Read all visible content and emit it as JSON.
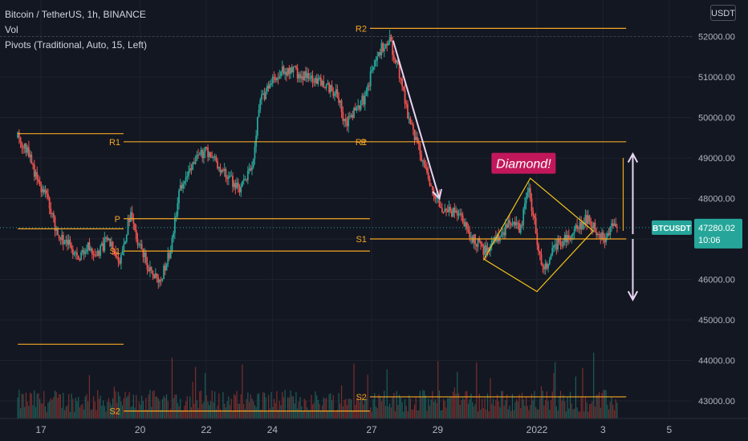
{
  "symbol_title": "Bitcoin / TetherUS, 1h, BINANCE",
  "vol_label": "Vol",
  "pivots_label": "Pivots (Traditional, Auto, 15, Left)",
  "currency": "USDT",
  "price_label": {
    "symbol": "BTCUSDT",
    "price": "47280.02",
    "countdown": "10:06",
    "color": "#26a69a"
  },
  "annotation": {
    "text": "Diamond!",
    "bg": "#c2185b"
  },
  "colors": {
    "up": "#26a69a",
    "down": "#ef5350",
    "pivot": "#f5a623",
    "diamond": "#f5c518",
    "arrow": "#e8d5f0",
    "bg": "#131722",
    "grid": "#1e222d"
  },
  "pivot_labels": [
    "R2",
    "R1",
    "P",
    "S1",
    "S2"
  ],
  "chart_data": {
    "type": "candlestick",
    "title": "Bitcoin / TetherUS, 1h, BINANCE",
    "y_ticks": [
      52000,
      51000,
      50000,
      49000,
      48000,
      47000,
      46000,
      45000,
      44000,
      43000
    ],
    "y_tick_labels": [
      "52000.00",
      "51000.00",
      "50000.00",
      "49000.00",
      "48000.00",
      "47000.00",
      "46000.00",
      "45000.00",
      "44000.00",
      "43000.00"
    ],
    "ylim": [
      42650,
      52900
    ],
    "x_ticks": [
      "17",
      "20",
      "22",
      "24",
      "27",
      "29",
      "2022",
      "3",
      "5"
    ],
    "x_tick_day_index": [
      17,
      20,
      22,
      24,
      27,
      29,
      32,
      34,
      36
    ],
    "xlim_days": [
      16.3,
      37.0
    ],
    "last_price": 47280.02,
    "last_price_line": 47280,
    "top_dotted_line": 52000,
    "anchor_points": [
      {
        "d": 16.3,
        "p": 49500
      },
      {
        "d": 16.6,
        "p": 49200
      },
      {
        "d": 16.9,
        "p": 48400
      },
      {
        "d": 17.2,
        "p": 48000
      },
      {
        "d": 17.5,
        "p": 47100
      },
      {
        "d": 17.8,
        "p": 46900
      },
      {
        "d": 18.1,
        "p": 46500
      },
      {
        "d": 18.4,
        "p": 46800
      },
      {
        "d": 18.7,
        "p": 46600
      },
      {
        "d": 19.0,
        "p": 47000
      },
      {
        "d": 19.4,
        "p": 46500
      },
      {
        "d": 19.7,
        "p": 47600
      },
      {
        "d": 19.9,
        "p": 47000
      },
      {
        "d": 20.2,
        "p": 46400
      },
      {
        "d": 20.6,
        "p": 45900
      },
      {
        "d": 20.9,
        "p": 46700
      },
      {
        "d": 21.2,
        "p": 48200
      },
      {
        "d": 21.5,
        "p": 48800
      },
      {
        "d": 22.0,
        "p": 49200
      },
      {
        "d": 22.5,
        "p": 48700
      },
      {
        "d": 23.0,
        "p": 48200
      },
      {
        "d": 23.4,
        "p": 48800
      },
      {
        "d": 23.6,
        "p": 50300
      },
      {
        "d": 24.0,
        "p": 51000
      },
      {
        "d": 24.5,
        "p": 51200
      },
      {
        "d": 25.0,
        "p": 51000
      },
      {
        "d": 25.5,
        "p": 50900
      },
      {
        "d": 26.0,
        "p": 50500
      },
      {
        "d": 26.2,
        "p": 49800
      },
      {
        "d": 26.5,
        "p": 50200
      },
      {
        "d": 26.8,
        "p": 50500
      },
      {
        "d": 27.0,
        "p": 51100
      },
      {
        "d": 27.3,
        "p": 51700
      },
      {
        "d": 27.55,
        "p": 51900
      },
      {
        "d": 27.8,
        "p": 51200
      },
      {
        "d": 28.1,
        "p": 50000
      },
      {
        "d": 28.4,
        "p": 49300
      },
      {
        "d": 28.8,
        "p": 48300
      },
      {
        "d": 29.2,
        "p": 47700
      },
      {
        "d": 29.6,
        "p": 47600
      },
      {
        "d": 30.0,
        "p": 47100
      },
      {
        "d": 30.4,
        "p": 46700
      },
      {
        "d": 30.8,
        "p": 47000
      },
      {
        "d": 31.2,
        "p": 47400
      },
      {
        "d": 31.5,
        "p": 47200
      },
      {
        "d": 31.75,
        "p": 48300
      },
      {
        "d": 32.0,
        "p": 47000
      },
      {
        "d": 32.2,
        "p": 46200
      },
      {
        "d": 32.5,
        "p": 46800
      },
      {
        "d": 33.0,
        "p": 47100
      },
      {
        "d": 33.5,
        "p": 47500
      },
      {
        "d": 34.0,
        "p": 47000
      },
      {
        "d": 34.3,
        "p": 47300
      }
    ],
    "pivot_periods": [
      {
        "x0": 16.3,
        "x1": 19.5,
        "levels": {
          "R1": 49600,
          "P": 47250,
          "S1": 44400
        }
      },
      {
        "x0": 19.5,
        "x1": 26.95,
        "levels": {
          "R1": 49400,
          "P": 47500,
          "S1": 46700,
          "S2": 42750
        },
        "labels_at_start": true
      },
      {
        "x0": 26.95,
        "x1": 34.7,
        "levels": {
          "R2": 52200,
          "R1": 49400,
          "S1": 47000,
          "S2": 43100
        },
        "labels_at_start": true
      }
    ],
    "diamond": [
      {
        "d": 30.4,
        "p": 46500
      },
      {
        "d": 31.8,
        "p": 48500
      },
      {
        "d": 33.7,
        "p": 47200
      },
      {
        "d": 32.0,
        "p": 45700
      }
    ],
    "arrows": [
      {
        "from": {
          "d": 27.65,
          "p": 51900
        },
        "to": {
          "d": 29.05,
          "p": 48000
        }
      },
      {
        "from": {
          "d": 34.9,
          "p": 47000
        },
        "to": {
          "d": 34.9,
          "p": 45500
        },
        "tail": {
          "d": 34.9,
          "p": 49100
        }
      }
    ],
    "annotation_anchor": {
      "d": 31.5,
      "p": 48850
    }
  }
}
